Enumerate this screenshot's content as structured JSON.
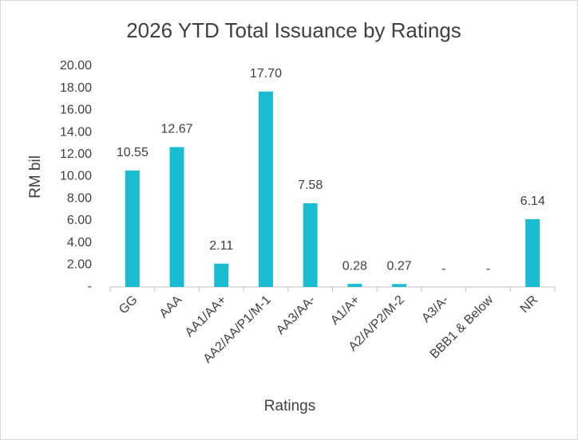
{
  "chart_data": {
    "type": "bar",
    "title": "2026 YTD Total Issuance by Ratings",
    "x_label": "Ratings",
    "y_label": "RM bil",
    "categories": [
      "GG",
      "AAA",
      "AA1/AA+",
      "AA2/AA/P1/M-1",
      "AA3/AA-",
      "A1/A+",
      "A2/A/P2/M-2",
      "A3/A-",
      "BBB1 & Below",
      "NR"
    ],
    "values": [
      10.55,
      12.67,
      2.11,
      17.7,
      7.58,
      0.28,
      0.27,
      0,
      0,
      6.14
    ],
    "value_labels": [
      "10.55",
      "12.67",
      "2.11",
      "17.70",
      "7.58",
      "0.28",
      "0.27",
      "-",
      "-",
      "6.14"
    ],
    "color": "#1ABCD2",
    "ylim": [
      0,
      20
    ],
    "yticks": [
      {
        "value": 0,
        "label": "-"
      },
      {
        "value": 2,
        "label": "2.00"
      },
      {
        "value": 4,
        "label": "4.00"
      },
      {
        "value": 6,
        "label": "6.00"
      },
      {
        "value": 8,
        "label": "8.00"
      },
      {
        "value": 10,
        "label": "10.00"
      },
      {
        "value": 12,
        "label": "12.00"
      },
      {
        "value": 14,
        "label": "14.00"
      },
      {
        "value": 16,
        "label": "16.00"
      },
      {
        "value": 18,
        "label": "18.00"
      },
      {
        "value": 20,
        "label": "20.00"
      }
    ],
    "grid": false
  }
}
